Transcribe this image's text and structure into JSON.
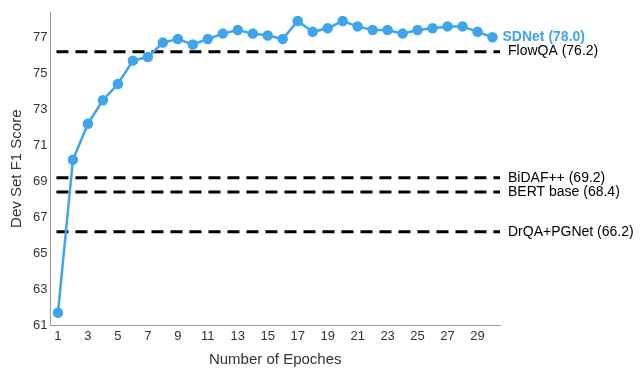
{
  "chart_data": {
    "type": "line",
    "x": [
      1,
      2,
      3,
      4,
      5,
      6,
      7,
      8,
      9,
      10,
      11,
      12,
      13,
      14,
      15,
      16,
      17,
      18,
      19,
      20,
      21,
      22,
      23,
      24,
      25,
      26,
      27,
      28,
      29,
      30
    ],
    "series": [
      {
        "name": "SDNet (78.0)",
        "color": "#3ea5ec",
        "marker": "circle",
        "line_style": "solid",
        "values": [
          61.7,
          70.2,
          72.2,
          73.5,
          74.4,
          75.7,
          75.9,
          76.7,
          76.9,
          76.6,
          76.9,
          77.2,
          77.4,
          77.2,
          77.1,
          76.9,
          77.9,
          77.3,
          77.5,
          77.9,
          77.6,
          77.4,
          77.4,
          77.2,
          77.4,
          77.5,
          77.6,
          77.6,
          77.3,
          77.0
        ]
      }
    ],
    "xlabel": "Number of Epoches",
    "ylabel": "Dev Set F1 Score",
    "xlim": [
      0.5,
      30.5
    ],
    "xticks": [
      1,
      3,
      5,
      7,
      9,
      11,
      13,
      15,
      17,
      19,
      21,
      23,
      25,
      27,
      29
    ],
    "ylim": [
      61,
      78.4
    ],
    "yticks": [
      61,
      63,
      65,
      67,
      69,
      71,
      73,
      75,
      77
    ],
    "grid": false,
    "annotations": [
      {
        "text": "FlowQA (76.2)",
        "y": 76.2,
        "line_style": "dashed",
        "color": "#000000"
      },
      {
        "text": "BiDAF++ (69.2)",
        "y": 69.2,
        "line_style": "dashed",
        "color": "#000000"
      },
      {
        "text": "BERT base (68.4)",
        "y": 68.4,
        "line_style": "dashed",
        "color": "#000000"
      },
      {
        "text": "DrQA+PGNet (66.2)",
        "y": 66.2,
        "line_style": "dashed",
        "color": "#000000"
      }
    ]
  }
}
